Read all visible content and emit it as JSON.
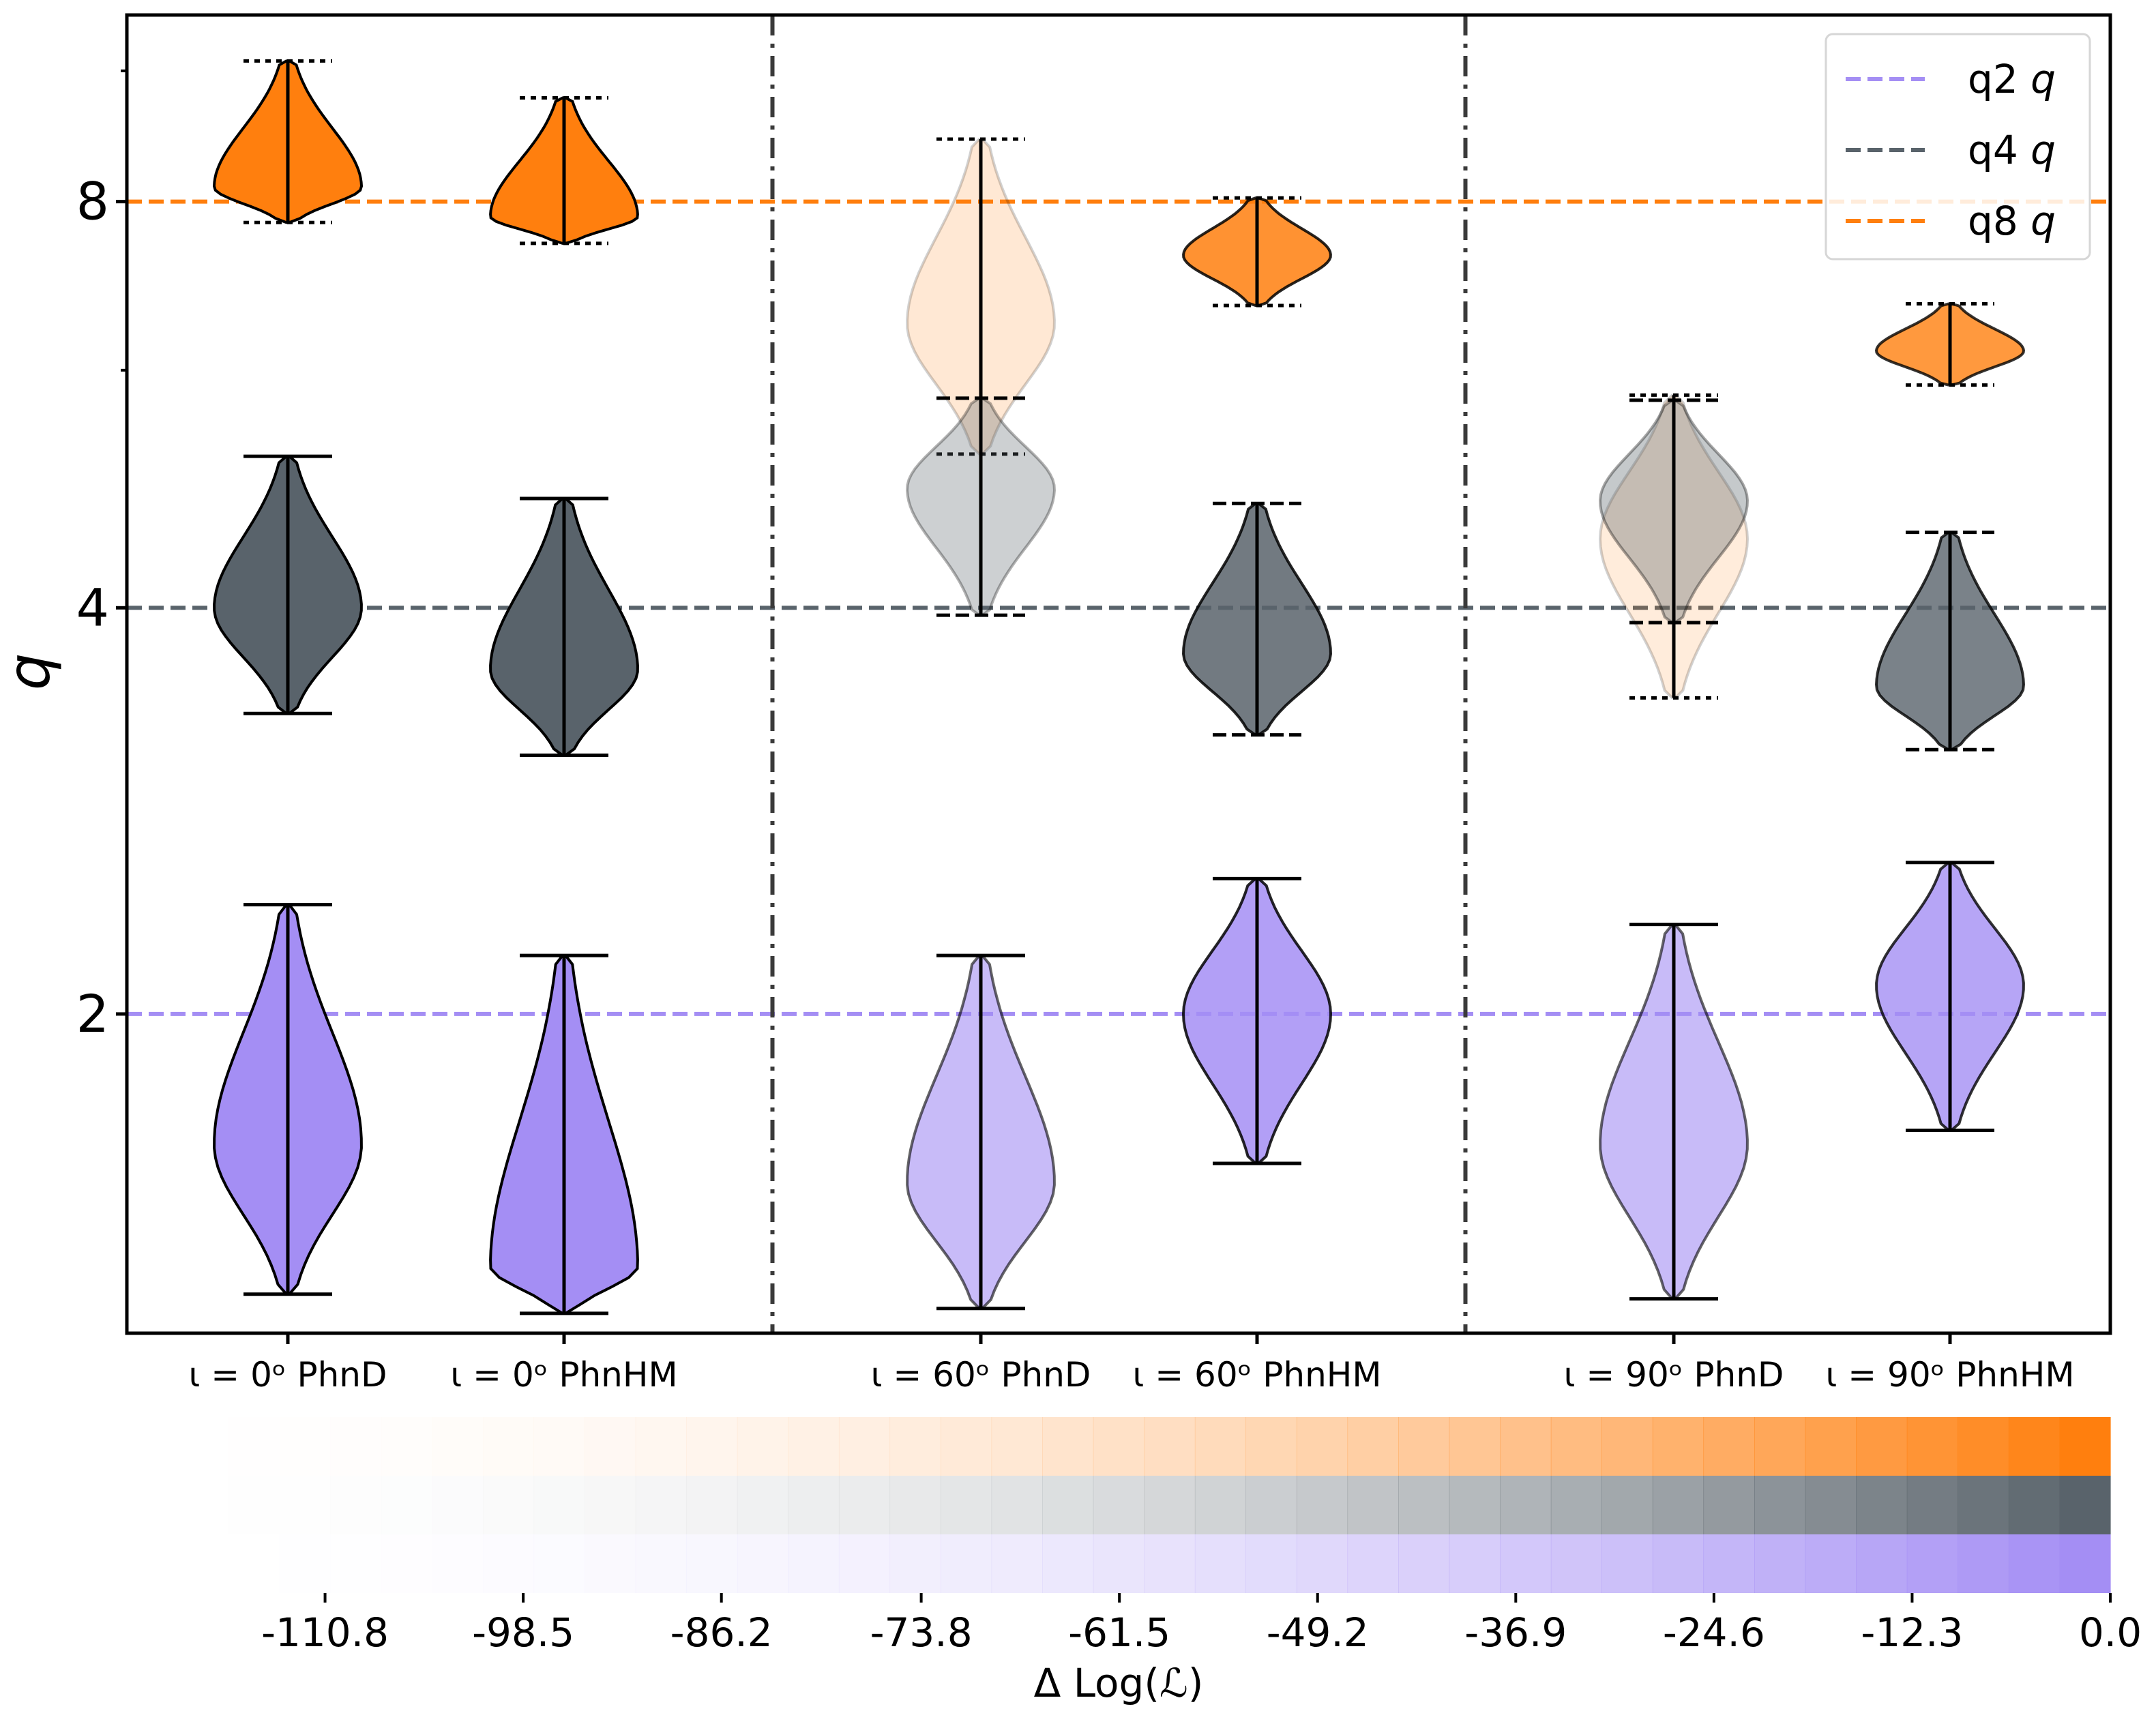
{
  "chart_data": {
    "type": "violin",
    "ylabel": "q",
    "yscale": "log2",
    "ylim": [
      1.16,
      11.0
    ],
    "yticks": [
      {
        "value": 2,
        "label": "2"
      },
      {
        "value": 4,
        "label": "4"
      },
      {
        "value": 8,
        "label": "8"
      }
    ],
    "yminor_ticks": [
      6,
      10
    ],
    "groups": [
      {
        "label": "ι = 0ᵒ PhnD",
        "dloglik": 0,
        "violins": [
          {
            "series": "q8",
            "min": 7.72,
            "max": 10.17,
            "mode": 8.2,
            "alpha": 1.0
          },
          {
            "series": "q4",
            "min": 3.34,
            "max": 5.18,
            "mode": 4.0,
            "alpha": 1.0
          },
          {
            "series": "q2",
            "min": 1.24,
            "max": 2.41,
            "mode": 1.6,
            "alpha": 1.0
          }
        ]
      },
      {
        "label": "ι = 0ᵒ PhnHM",
        "dloglik": 0,
        "violins": [
          {
            "series": "q8",
            "min": 7.45,
            "max": 9.55,
            "mode": 7.8,
            "alpha": 1.0
          },
          {
            "series": "q4",
            "min": 3.11,
            "max": 4.82,
            "mode": 3.6,
            "alpha": 1.0
          },
          {
            "series": "q2",
            "min": 1.2,
            "max": 2.21,
            "mode": 1.3,
            "alpha": 1.0
          }
        ]
      },
      {
        "label": "ι = 60ᵒ PhnD",
        "dloglik": -90,
        "violins": [
          {
            "series": "q8",
            "min": 5.2,
            "max": 8.9,
            "mode": 6.5,
            "alpha": 0.18
          },
          {
            "series": "q4",
            "min": 3.95,
            "max": 5.72,
            "mode": 4.9,
            "alpha": 0.3
          },
          {
            "series": "q2",
            "min": 1.21,
            "max": 2.21,
            "mode": 1.5,
            "alpha": 0.6
          }
        ]
      },
      {
        "label": "ι = 60ᵒ PhnHM",
        "dloglik": -2,
        "violins": [
          {
            "series": "q8",
            "min": 6.7,
            "max": 8.05,
            "mode": 7.3,
            "alpha": 0.85
          },
          {
            "series": "q4",
            "min": 3.22,
            "max": 4.78,
            "mode": 3.7,
            "alpha": 0.85
          },
          {
            "series": "q2",
            "min": 1.55,
            "max": 2.52,
            "mode": 2.0,
            "alpha": 0.85
          }
        ]
      },
      {
        "label": "ι = 90ᵒ PhnD",
        "dloglik": -95,
        "violins": [
          {
            "series": "q8",
            "min": 3.43,
            "max": 5.75,
            "mode": 4.5,
            "alpha": 0.15
          },
          {
            "series": "q4",
            "min": 3.9,
            "max": 5.7,
            "mode": 4.8,
            "alpha": 0.35
          },
          {
            "series": "q2",
            "min": 1.23,
            "max": 2.33,
            "mode": 1.6,
            "alpha": 0.6
          }
        ]
      },
      {
        "label": "ι = 90ᵒ PhnHM",
        "dloglik": -3,
        "violins": [
          {
            "series": "q8",
            "min": 5.85,
            "max": 6.72,
            "mode": 6.2,
            "alpha": 0.8
          },
          {
            "series": "q4",
            "min": 3.14,
            "max": 4.55,
            "mode": 3.5,
            "alpha": 0.8
          },
          {
            "series": "q2",
            "min": 1.64,
            "max": 2.59,
            "mode": 2.1,
            "alpha": 0.8
          }
        ]
      }
    ],
    "reference_lines": [
      {
        "series": "q2",
        "value": 2,
        "color": "#a48ef4"
      },
      {
        "series": "q4",
        "value": 4,
        "color": "#59636b"
      },
      {
        "series": "q8",
        "value": 8,
        "color": "#ff7f0e"
      }
    ],
    "legend": {
      "position": "upper-right",
      "entries": [
        {
          "series": "q2",
          "name": "q2",
          "symbol": "q",
          "color": "#a48ef4"
        },
        {
          "series": "q4",
          "name": "q4",
          "symbol": "q",
          "color": "#59636b"
        },
        {
          "series": "q8",
          "name": "q8",
          "symbol": "q",
          "color": "#ff7f0e"
        }
      ]
    },
    "colorbar": {
      "label": "Δ Log(ℒ)",
      "range": [
        -123.1,
        0.0
      ],
      "ticks": [
        "-110.8",
        "-98.5",
        "-86.2",
        "-73.8",
        "-61.5",
        "-49.2",
        "-36.9",
        "-24.6",
        "-12.3",
        "0.0"
      ],
      "rows": [
        "q8",
        "q4",
        "q2"
      ]
    }
  },
  "colors": {
    "q2": "#a48ef4",
    "q4": "#59636b",
    "q8": "#ff7f0e"
  }
}
